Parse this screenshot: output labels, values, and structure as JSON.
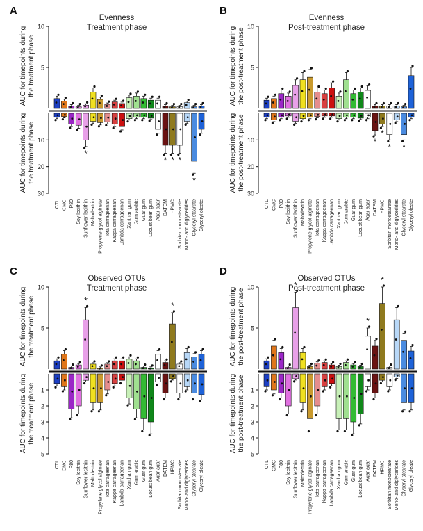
{
  "additives": [
    "CTL",
    "CMC",
    "P80",
    "Soy lecithin",
    "Sunflower lecithin",
    "Maltodextrin",
    "Propylene glycol alginate",
    "Iota carrageenan",
    "Kappa carrageenan",
    "Lambda carrageenan",
    "Xanthan gum",
    "Gum arabic",
    "Guar gum",
    "Locust bean gum",
    "Agar agar",
    "DATEM",
    "HPMC",
    "Sorbitan monostearate",
    "Mono- and diglycerides",
    "Glyceryl stearate",
    "Glyceryl oleate"
  ],
  "colors": [
    "#1c3fc4",
    "#e0761a",
    "#9b27c7",
    "#e070e0",
    "#e8a0e8",
    "#f0e020",
    "#c99a2e",
    "#e58d8d",
    "#d84040",
    "#cc1010",
    "#c8f0b8",
    "#a0e090",
    "#33bb33",
    "#10881a",
    "#ffffff",
    "#6a1212",
    "#8f7a1e",
    "#ffffff",
    "#b8d8f8",
    "#4a8be0",
    "#1e62d8"
  ],
  "chart_data": [
    {
      "panel": "A",
      "type": "bar",
      "title_line1": "Evenness",
      "title_line2": "Treatment phase",
      "ylabel_upper_1": "AUC for timepoints during",
      "ylabel_upper_2": "the treatment phase",
      "ylabel_lower_1": "AUC for timepoints during",
      "ylabel_lower_2": "the treatment phase",
      "upper_ticks": [
        "10",
        "5"
      ],
      "upper_range": [
        0,
        10
      ],
      "lower_ticks": [
        "10",
        "20",
        "30"
      ],
      "lower_range": [
        0,
        30
      ],
      "upper_values": [
        1.2,
        0.9,
        0.3,
        0.2,
        0.4,
        2.0,
        1.1,
        0.5,
        0.8,
        0.6,
        1.3,
        1.5,
        1.2,
        1.0,
        1.0,
        0.3,
        0.2,
        0.2,
        0.7,
        0.2,
        0.3
      ],
      "lower_values": [
        1.5,
        1.2,
        4.0,
        4.5,
        10.0,
        3.0,
        3.5,
        3.2,
        4.0,
        5.0,
        2.0,
        1.5,
        1.5,
        1.8,
        6.0,
        12.0,
        12.0,
        12.0,
        3.0,
        18.0,
        6.0
      ],
      "upper_sig": [],
      "lower_sig": [
        4,
        15,
        16,
        17,
        19
      ],
      "sig_mark": "*"
    },
    {
      "panel": "B",
      "type": "bar",
      "title_line1": "Evenness",
      "title_line2": "Post-treatment phase",
      "ylabel_upper_1": "AUC for timepoints during",
      "ylabel_upper_2": "the post-treatment phase",
      "ylabel_lower_1": "AUC for timepoints during",
      "ylabel_lower_2": "the post-treatment phase",
      "upper_ticks": [
        "10",
        "5"
      ],
      "upper_range": [
        0,
        10
      ],
      "lower_ticks": [
        "10",
        "20",
        "30"
      ],
      "lower_range": [
        0,
        30
      ],
      "upper_values": [
        1.0,
        1.2,
        1.8,
        1.5,
        2.8,
        3.5,
        3.8,
        2.0,
        1.8,
        2.5,
        1.5,
        3.5,
        1.8,
        2.0,
        2.2,
        0.3,
        0.3,
        0.3,
        0.3,
        0.2,
        4.0
      ],
      "lower_values": [
        1.5,
        2.5,
        1.5,
        1.0,
        3.0,
        2.0,
        1.5,
        1.2,
        1.0,
        1.0,
        2.0,
        1.5,
        1.5,
        1.8,
        1.5,
        6.5,
        4.0,
        8.0,
        2.5,
        8.0,
        1.5
      ],
      "upper_sig": [],
      "lower_sig": [
        15,
        16,
        17,
        19
      ],
      "sig_mark": "*"
    },
    {
      "panel": "C",
      "type": "bar",
      "title_line1": "Observed OTUs",
      "title_line2": "Treatment phase",
      "ylabel_upper_1": "AUC for timepoints during",
      "ylabel_upper_2": "the treatment phase",
      "ylabel_lower_1": "AUC for timepoints during",
      "ylabel_lower_2": "the treatment phase",
      "upper_ticks": [
        "10",
        "5"
      ],
      "upper_range": [
        0,
        10
      ],
      "lower_ticks": [
        "1",
        "2",
        "3",
        "4",
        "5"
      ],
      "lower_range": [
        0,
        5
      ],
      "upper_values": [
        1.0,
        1.8,
        0.2,
        0.5,
        6.0,
        0.6,
        0.1,
        0.6,
        1.0,
        1.0,
        1.2,
        1.0,
        0.2,
        0.1,
        1.8,
        0.8,
        5.5,
        0.6,
        2.0,
        1.5,
        1.8
      ],
      "lower_values": [
        0.6,
        0.8,
        2.2,
        2.0,
        0.4,
        1.8,
        1.8,
        1.0,
        0.6,
        0.4,
        1.5,
        2.2,
        2.8,
        3.0,
        0.5,
        1.2,
        0.3,
        1.2,
        0.8,
        1.2,
        1.3
      ],
      "upper_sig": [
        4,
        16
      ],
      "lower_sig": [],
      "sig_mark": "*"
    },
    {
      "panel": "D",
      "type": "bar",
      "title_line1": "Observed OTUs",
      "title_line2": "Post-treatment phase",
      "ylabel_upper_1": "AUC for timepoints during",
      "ylabel_upper_2": "the post-treatment phase",
      "ylabel_lower_1": "AUC for timepoints during",
      "ylabel_lower_2": "the post-treatment phase",
      "upper_ticks": [
        "10",
        "5"
      ],
      "upper_range": [
        0,
        10
      ],
      "lower_ticks": [
        "1",
        "2",
        "3",
        "4",
        "5"
      ],
      "lower_range": [
        0,
        5
      ],
      "upper_values": [
        1.0,
        2.8,
        2.0,
        0.2,
        7.5,
        2.0,
        0.3,
        0.7,
        0.8,
        0.5,
        0.3,
        0.8,
        0.5,
        0.3,
        4.0,
        2.8,
        8.0,
        0.2,
        6.0,
        3.5,
        2.2
      ],
      "lower_values": [
        0.8,
        1.0,
        1.2,
        2.0,
        0.3,
        1.8,
        2.8,
        2.0,
        0.8,
        0.6,
        2.8,
        2.8,
        3.0,
        2.5,
        0.8,
        1.2,
        0.4,
        0.8,
        0.2,
        1.8,
        1.8
      ],
      "upper_sig": [
        4,
        14,
        16
      ],
      "lower_sig": [],
      "sig_mark": "*"
    }
  ]
}
